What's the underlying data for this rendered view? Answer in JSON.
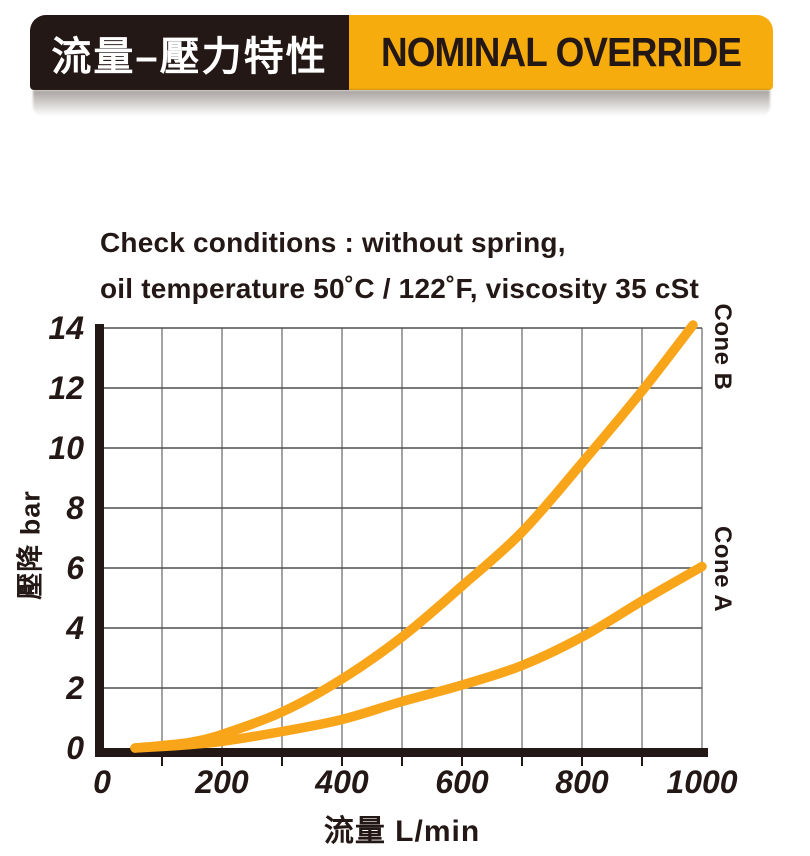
{
  "header": {
    "title_zh": "流量–壓力特性",
    "title_en": "NOMINAL OVERRIDE",
    "dark_color": "#231815",
    "amber_color": "#F6AC0D"
  },
  "conditions": {
    "line1": "Check conditions : without spring,",
    "line2": "oil temperature 50˚C / 122˚F, viscosity 35 cSt"
  },
  "chart_data": {
    "type": "line",
    "title": "",
    "xlabel": "流量 L/min",
    "ylabel": "壓降 bar",
    "xlim": [
      0,
      1000
    ],
    "ylim": [
      0,
      14
    ],
    "x_ticks": [
      0,
      200,
      400,
      600,
      800,
      1000
    ],
    "y_ticks": [
      0,
      2,
      4,
      6,
      8,
      10,
      12,
      14
    ],
    "grid": true,
    "x_grid_step": 100,
    "y_grid_step": 2,
    "legend_position": "right-margin-rotated",
    "line_color": "#F9A51A",
    "grid_color": "#606060",
    "axis_color": "#231815",
    "series": [
      {
        "name": "Cone B",
        "points": [
          [
            55,
            0
          ],
          [
            100,
            0.08
          ],
          [
            150,
            0.2
          ],
          [
            200,
            0.45
          ],
          [
            300,
            1.2
          ],
          [
            400,
            2.3
          ],
          [
            500,
            3.7
          ],
          [
            600,
            5.4
          ],
          [
            700,
            7.2
          ],
          [
            800,
            9.5
          ],
          [
            900,
            11.9
          ],
          [
            985,
            14.1
          ]
        ]
      },
      {
        "name": "Cone A",
        "points": [
          [
            55,
            0
          ],
          [
            100,
            0.05
          ],
          [
            150,
            0.12
          ],
          [
            200,
            0.22
          ],
          [
            300,
            0.55
          ],
          [
            400,
            0.95
          ],
          [
            500,
            1.55
          ],
          [
            600,
            2.1
          ],
          [
            700,
            2.75
          ],
          [
            800,
            3.7
          ],
          [
            900,
            4.9
          ],
          [
            1000,
            6.05
          ]
        ]
      }
    ]
  }
}
